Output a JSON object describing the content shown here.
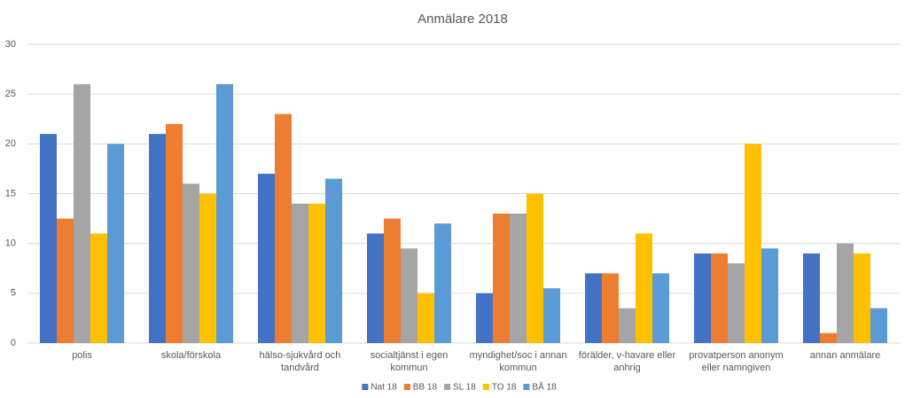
{
  "chart_data": {
    "type": "bar",
    "title": "Anmälare 2018",
    "categories": [
      "polis",
      "skola/förskola",
      "hälso-sjukvård och tandvård",
      "socialtjänst i egen kommun",
      "myndighet/soc i annan kommun",
      "förälder, v-havare eller anhrig",
      "provatperson anonym eller namngiven",
      "annan anmälare"
    ],
    "series": [
      {
        "name": "Nat 18",
        "color": "#4472c4",
        "values": [
          21,
          21,
          17,
          11,
          5,
          7,
          9,
          9
        ]
      },
      {
        "name": "BB 18",
        "color": "#ed7d31",
        "values": [
          12.5,
          22,
          23,
          12.5,
          13,
          7,
          9,
          1
        ]
      },
      {
        "name": "SL 18",
        "color": "#a5a5a5",
        "values": [
          26,
          16,
          14,
          9.5,
          13,
          3.5,
          8,
          10
        ]
      },
      {
        "name": "TO 18",
        "color": "#ffc000",
        "values": [
          11,
          15,
          14,
          5,
          15,
          11,
          20,
          9
        ]
      },
      {
        "name": "BÅ 18",
        "color": "#5b9bd5",
        "values": [
          20,
          26,
          16.5,
          12,
          5.5,
          7,
          9.5,
          3.5
        ]
      }
    ],
    "ylim": [
      0,
      30
    ],
    "yticks": [
      0,
      5,
      10,
      15,
      20,
      25,
      30
    ],
    "grid": true,
    "legend": "bottom"
  }
}
